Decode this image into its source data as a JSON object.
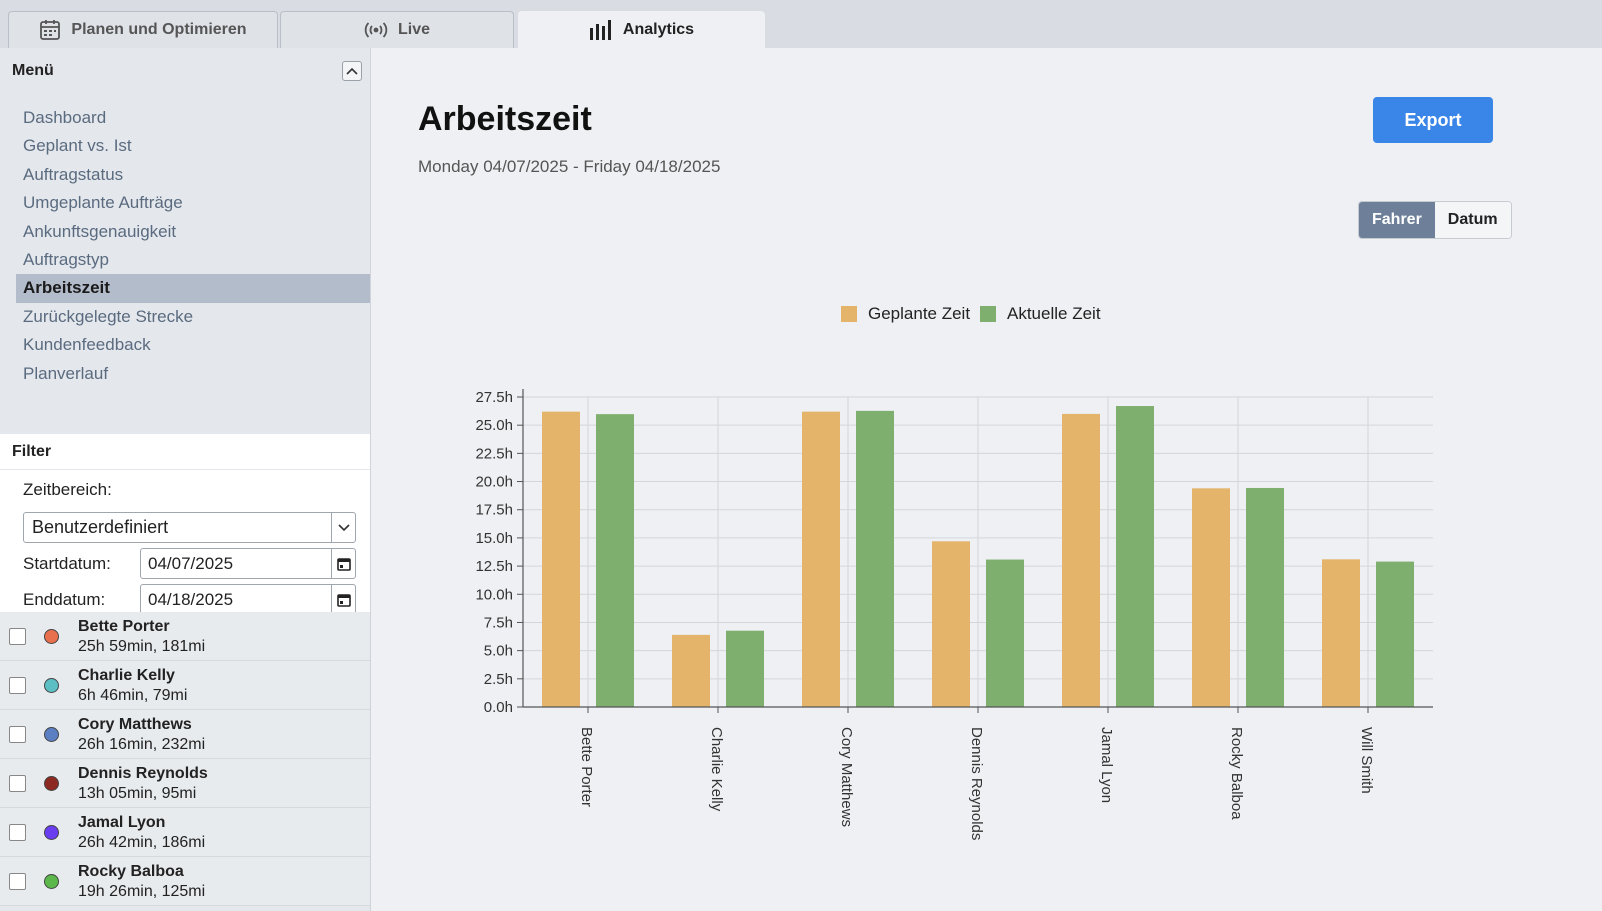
{
  "tabs": [
    {
      "label": "Planen und Optimieren",
      "icon": "calendar-icon"
    },
    {
      "label": "Live",
      "icon": "broadcast-icon"
    },
    {
      "label": "Analytics",
      "icon": "bar-chart-icon",
      "active": true
    }
  ],
  "sidebar": {
    "menu_title": "Menü",
    "items": [
      {
        "label": "Dashboard"
      },
      {
        "label": "Geplant vs. Ist"
      },
      {
        "label": "Auftragstatus"
      },
      {
        "label": "Umgeplante Aufträge"
      },
      {
        "label": "Ankunftsgenauigkeit"
      },
      {
        "label": "Auftragstyp"
      },
      {
        "label": "Arbeitszeit",
        "active": true
      },
      {
        "label": "Zurückgelegte Strecke"
      },
      {
        "label": "Kundenfeedback"
      },
      {
        "label": "Planverlauf"
      }
    ],
    "filter": {
      "title": "Filter",
      "range_label": "Zeitbereich:",
      "range_value": "Benutzerdefiniert",
      "start_label": "Startdatum:",
      "start_value": "04/07/2025",
      "end_label": "Enddatum:",
      "end_value": "04/18/2025"
    },
    "drivers": [
      {
        "name": "Bette Porter",
        "stats": "25h 59min, 181mi",
        "color": "#e8704c"
      },
      {
        "name": "Charlie Kelly",
        "stats": "6h 46min, 79mi",
        "color": "#5bbfc4"
      },
      {
        "name": "Cory Matthews",
        "stats": "26h 16min, 232mi",
        "color": "#5b7fc2"
      },
      {
        "name": "Dennis Reynolds",
        "stats": "13h 05min, 95mi",
        "color": "#8c2a22"
      },
      {
        "name": "Jamal Lyon",
        "stats": "26h 42min, 186mi",
        "color": "#6a3df0"
      },
      {
        "name": "Rocky Balboa",
        "stats": "19h 26min, 125mi",
        "color": "#5cb84a"
      }
    ]
  },
  "main": {
    "title": "Arbeitszeit",
    "date_range": "Monday 04/07/2025 - Friday 04/18/2025",
    "export_label": "Export",
    "toggle": {
      "on": "Fahrer",
      "off": "Datum"
    }
  },
  "chart_data": {
    "type": "bar",
    "categories": [
      "Bette Porter",
      "Charlie Kelly",
      "Cory Matthews",
      "Dennis Reynolds",
      "Jamal Lyon",
      "Rocky Balboa",
      "Will Smith"
    ],
    "series": [
      {
        "name": "Geplante Zeit",
        "color": "#e3b46a",
        "values": [
          26.2,
          6.4,
          26.2,
          14.7,
          26.0,
          19.4,
          13.1
        ]
      },
      {
        "name": "Aktuelle Zeit",
        "color": "#7eaf6e",
        "values": [
          25.98,
          6.77,
          26.27,
          13.08,
          26.7,
          19.43,
          12.9
        ]
      }
    ],
    "yticks": [
      "0.0h",
      "2.5h",
      "5.0h",
      "7.5h",
      "10.0h",
      "12.5h",
      "15.0h",
      "17.5h",
      "20.0h",
      "22.5h",
      "25.0h",
      "27.5h"
    ],
    "ylim": [
      0,
      27.5
    ],
    "grid": true,
    "legend": "top-center"
  }
}
